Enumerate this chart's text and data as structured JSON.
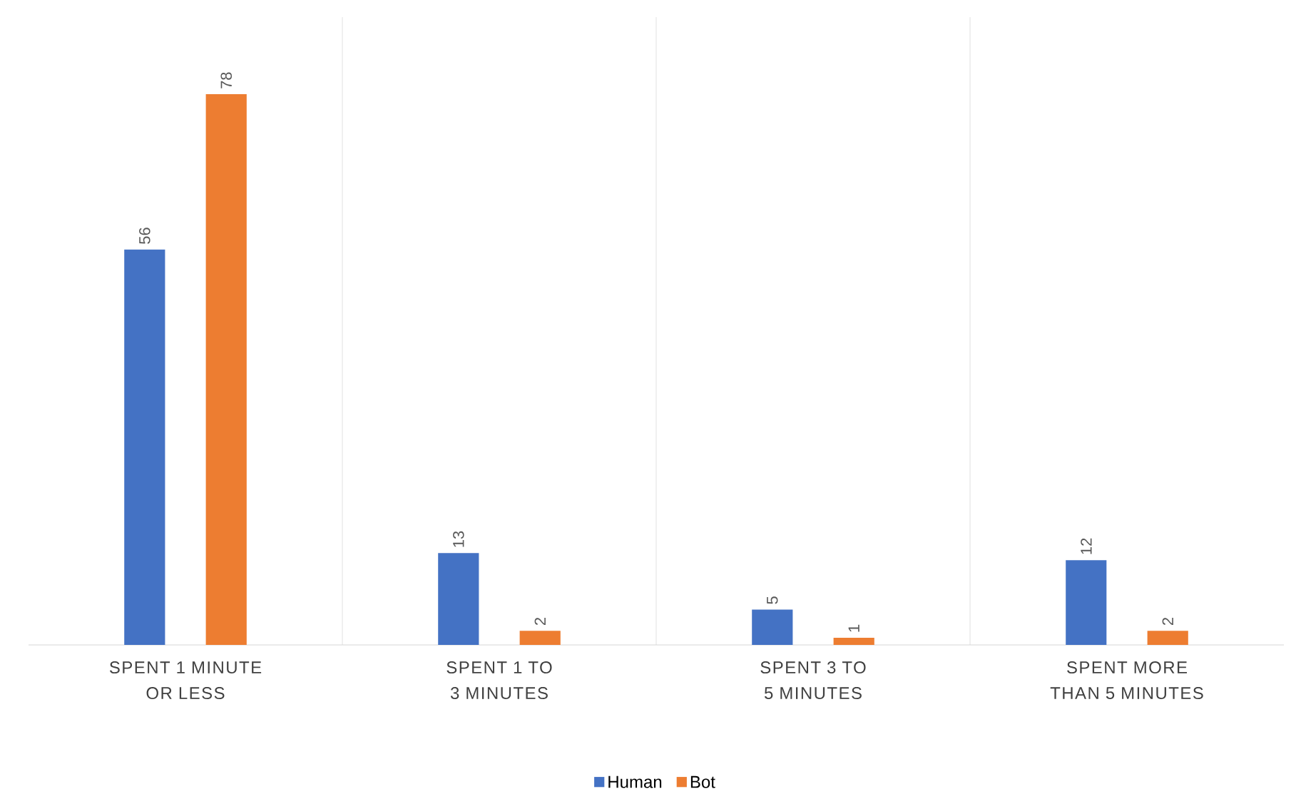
{
  "chart_data": {
    "type": "bar",
    "categories": [
      "SPENT 1 MINUTE OR LESS",
      "SPENT 1 TO 3 MINUTES",
      "SPENT 3 TO 5 MINUTES",
      "SPENT MORE THAN 5 MINUTES"
    ],
    "series": [
      {
        "name": "Human",
        "color": "#4472c4",
        "values": [
          56,
          13,
          5,
          12
        ]
      },
      {
        "name": "Bot",
        "color": "#ed7d31",
        "values": [
          78,
          2,
          1,
          2
        ]
      }
    ],
    "data_labels": true,
    "grid": "x",
    "legend": "bottom"
  }
}
